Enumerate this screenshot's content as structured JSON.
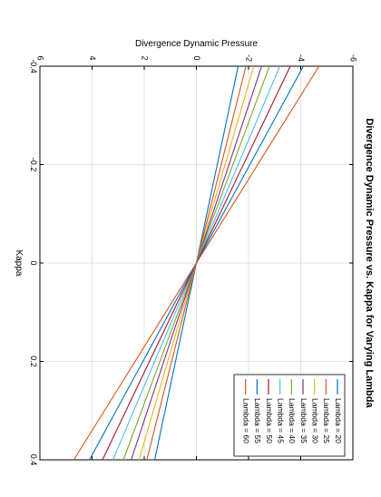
{
  "chart_data": {
    "type": "line",
    "title": "Divergence Dynamic Pressure vs. Kappa for Varying Lambda",
    "xlabel": "Kappa",
    "ylabel": "Divergence Dynamic Pressure",
    "xlim": [
      -0.4,
      0.4
    ],
    "ylim": [
      -6,
      6
    ],
    "xticks": [
      -0.4,
      -0.2,
      0,
      0.2,
      0.4
    ],
    "yticks": [
      -6,
      -4,
      -2,
      0,
      2,
      4,
      6
    ],
    "xtick_labels": [
      "-0.4",
      "-0.2",
      "0",
      "0.2",
      "0.4"
    ],
    "ytick_labels": [
      "-6",
      "-4",
      "-2",
      "0",
      "2",
      "4",
      "6"
    ],
    "grid": true,
    "legend_position": "bottom-right",
    "orientation": "rotated 90 degrees clockwise",
    "x": [
      -0.4,
      0.4
    ],
    "series": [
      {
        "name": "Lambda = 20",
        "color": "#0072bd",
        "values": [
          -1.6,
          1.6
        ]
      },
      {
        "name": "Lambda = 25",
        "color": "#d95319",
        "values": [
          -1.9,
          1.9
        ]
      },
      {
        "name": "Lambda = 30",
        "color": "#edb120",
        "values": [
          -2.2,
          2.2
        ]
      },
      {
        "name": "Lambda = 35",
        "color": "#7e2f8e",
        "values": [
          -2.5,
          2.5
        ]
      },
      {
        "name": "Lambda = 40",
        "color": "#77ac30",
        "values": [
          -2.8,
          2.8
        ]
      },
      {
        "name": "Lambda = 45",
        "color": "#4dbeee",
        "values": [
          -3.2,
          3.2
        ]
      },
      {
        "name": "Lambda = 50",
        "color": "#a2142f",
        "values": [
          -3.6,
          3.6
        ]
      },
      {
        "name": "Lambda = 55",
        "color": "#0072bd",
        "values": [
          -4.1,
          4.1
        ]
      },
      {
        "name": "Lambda = 60",
        "color": "#d95319",
        "values": [
          -4.7,
          4.7
        ]
      }
    ]
  }
}
